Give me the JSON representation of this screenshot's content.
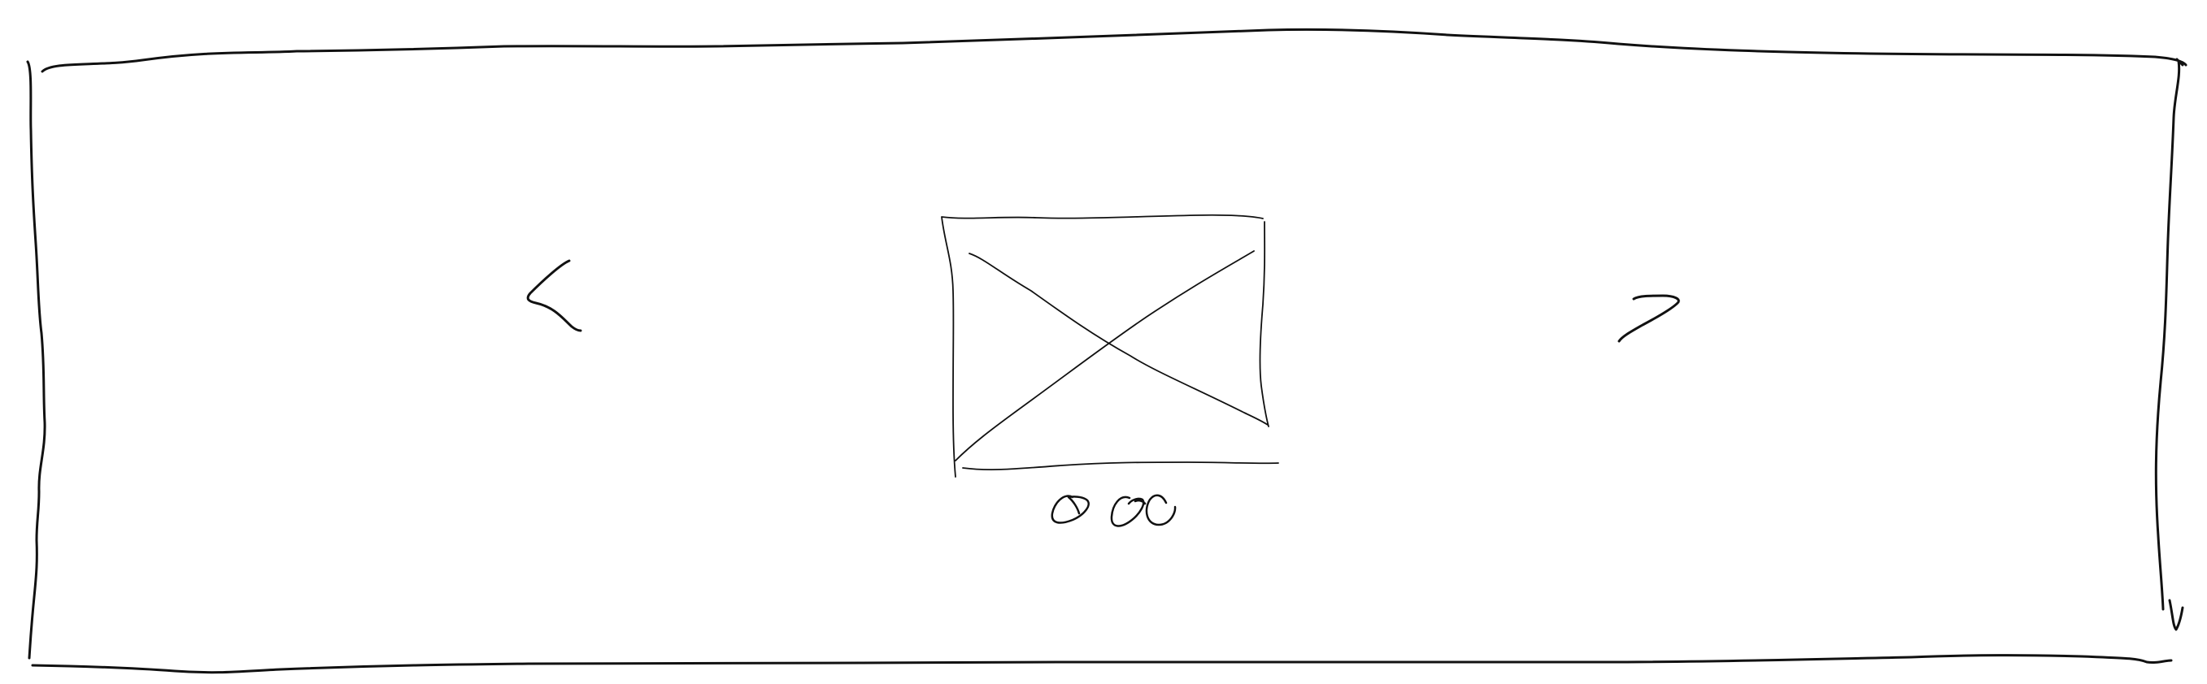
{
  "wireframe": {
    "kind": "carousel-sketch",
    "colors": {
      "ink": "#111111",
      "background": "#ffffff"
    },
    "icons": {
      "previous": "chevron-left-icon",
      "next": "chevron-right-icon",
      "image": "image-placeholder-icon",
      "pagination": "pagination-dots-icon"
    },
    "pagination": {
      "dot_count": 3
    }
  }
}
